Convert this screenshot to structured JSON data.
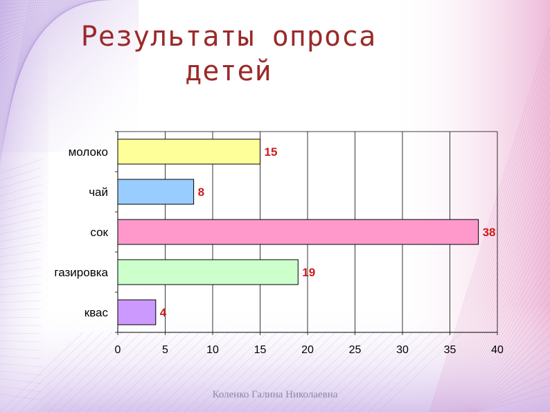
{
  "title_line1": "Результаты опроса",
  "title_line2": "детей",
  "author": "Коленко Галина Николаевна",
  "chart_data": {
    "type": "bar",
    "orientation": "horizontal",
    "categories": [
      "молоко",
      "чай",
      "сок",
      "газировка",
      "квас"
    ],
    "values": [
      15,
      8,
      38,
      19,
      4
    ],
    "colors": [
      "#ffff99",
      "#99ccff",
      "#ff99cc",
      "#ccffcc",
      "#cc99ff"
    ],
    "xlim": [
      0,
      40
    ],
    "xticks": [
      0,
      5,
      10,
      15,
      20,
      25,
      30,
      35,
      40
    ],
    "label_color": "#cc1b1b",
    "grid": "vertical"
  }
}
